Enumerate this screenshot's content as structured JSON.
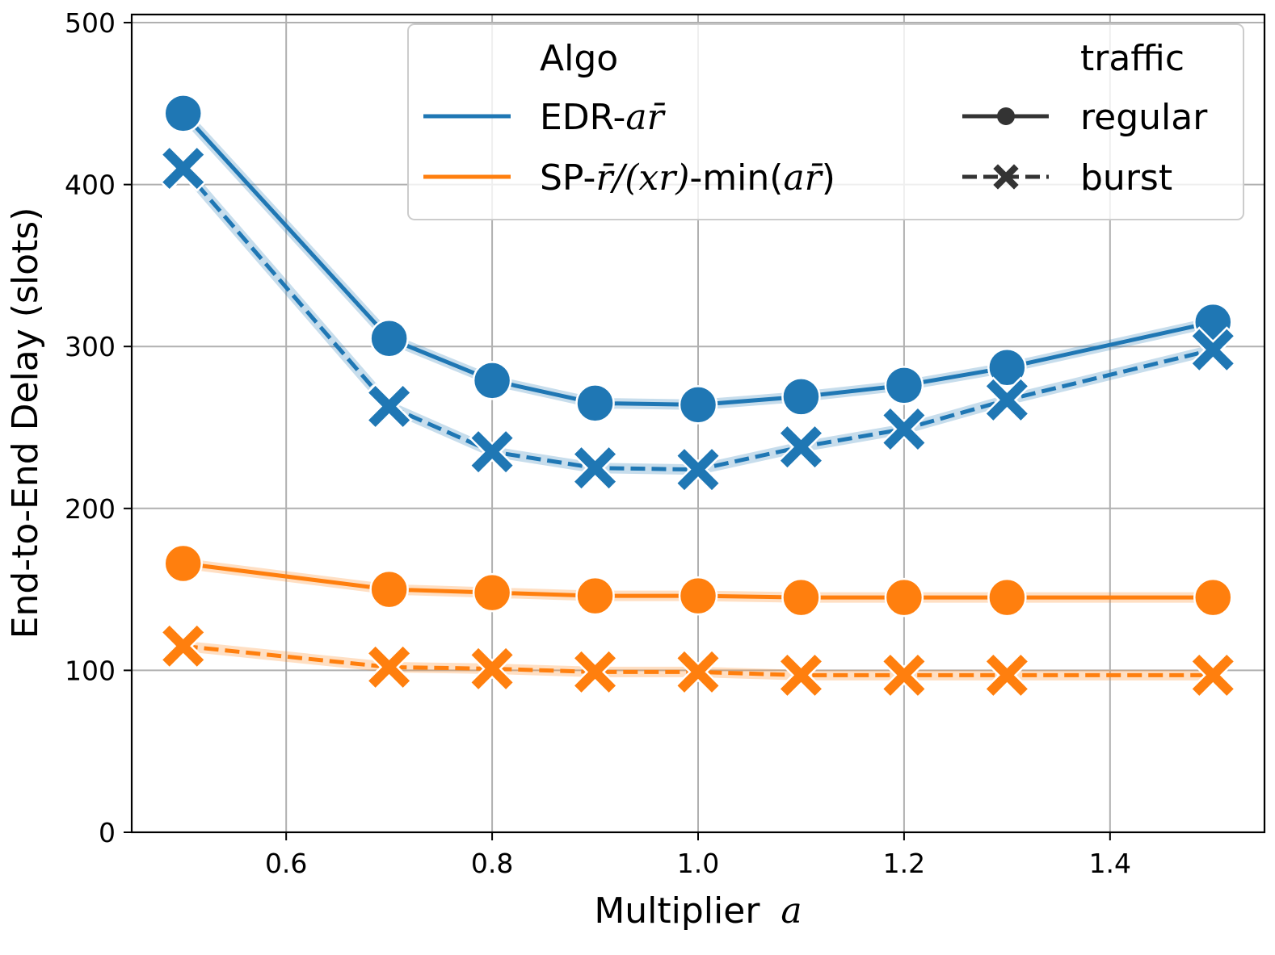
{
  "chart_data": {
    "type": "line",
    "xlabel_text": "Multiplier",
    "xlabel_math": "a",
    "ylabel": "End-to-End Delay (slots)",
    "xlim": [
      0.45,
      1.55
    ],
    "ylim": [
      0,
      505
    ],
    "xticks": [
      0.6,
      0.8,
      1.0,
      1.2,
      1.4
    ],
    "xtick_labels": [
      "0.6",
      "0.8",
      "1.0",
      "1.2",
      "1.4"
    ],
    "yticks": [
      0,
      100,
      200,
      300,
      400,
      500
    ],
    "ytick_labels": [
      "0",
      "100",
      "200",
      "300",
      "400",
      "500"
    ],
    "grid": true,
    "x": [
      0.5,
      0.7,
      0.8,
      0.9,
      1.0,
      1.1,
      1.2,
      1.3,
      1.5
    ],
    "series": [
      {
        "algo": "EDR",
        "traffic": "regular",
        "color": "#1f77b4",
        "dash": "solid",
        "marker": "circle",
        "values": [
          444,
          305,
          279,
          265,
          264,
          269,
          276,
          287,
          315
        ]
      },
      {
        "algo": "EDR",
        "traffic": "burst",
        "color": "#1f77b4",
        "dash": "dashed",
        "marker": "x",
        "values": [
          410,
          263,
          235,
          225,
          224,
          238,
          249,
          267,
          298
        ]
      },
      {
        "algo": "SP",
        "traffic": "regular",
        "color": "#ff7f0e",
        "dash": "solid",
        "marker": "circle",
        "values": [
          166,
          150,
          148,
          146,
          146,
          145,
          145,
          145,
          145
        ]
      },
      {
        "algo": "SP",
        "traffic": "burst",
        "color": "#ff7f0e",
        "dash": "dashed",
        "marker": "x",
        "values": [
          115,
          102,
          101,
          99,
          99,
          97,
          97,
          97,
          97
        ]
      }
    ],
    "legend": {
      "placement": "top-right",
      "algo_title": "Algo",
      "traffic_title": "traffic",
      "algo_entries": [
        {
          "prefix": "EDR-",
          "math": "ar̄",
          "suffix": "",
          "color": "#1f77b4"
        },
        {
          "prefix": "SP-",
          "math": "r̄/(xr)",
          "suffix": "-min(",
          "math2": "ar̄",
          "suffix2": ")",
          "color": "#ff7f0e"
        }
      ],
      "traffic_entries": [
        {
          "label": "regular",
          "dash": "solid",
          "marker": "circle"
        },
        {
          "label": "burst",
          "dash": "dashed",
          "marker": "x"
        }
      ]
    }
  }
}
